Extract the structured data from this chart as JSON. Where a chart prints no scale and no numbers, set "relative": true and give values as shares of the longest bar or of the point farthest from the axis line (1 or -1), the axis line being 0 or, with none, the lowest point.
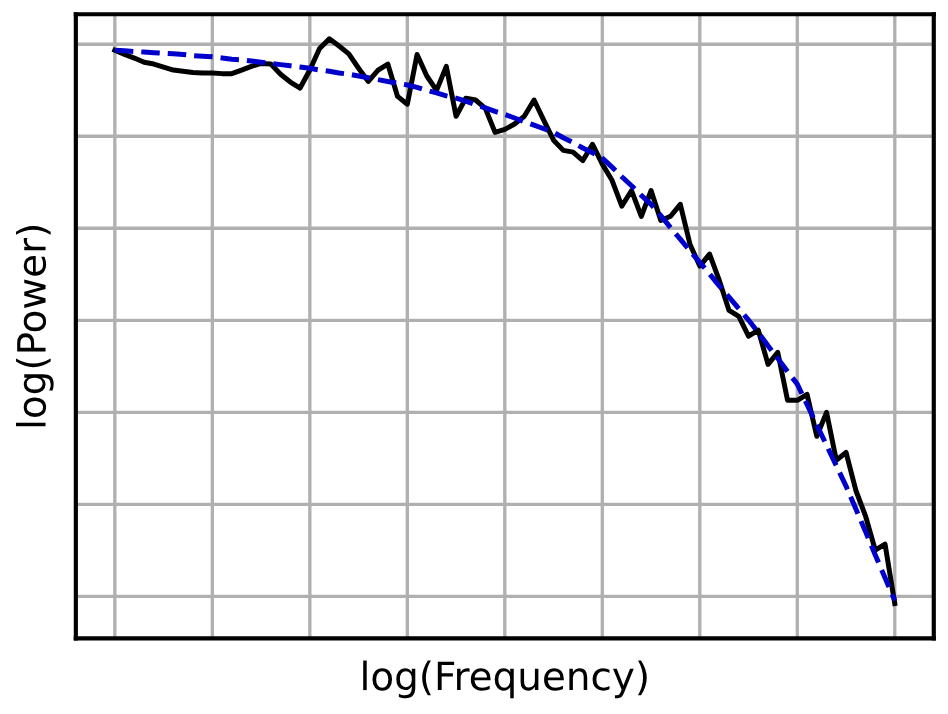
{
  "chart_data": {
    "type": "line",
    "relative": true,
    "xlabel": "log(Frequency)",
    "ylabel": "log(Power)",
    "grid": true,
    "categories": [
      null,
      null,
      null,
      null,
      null,
      null,
      null,
      null,
      null,
      null,
      null,
      null,
      null,
      null,
      null,
      null,
      null,
      null,
      null,
      null,
      null,
      null,
      null,
      null,
      null,
      null,
      null,
      null,
      null,
      null,
      null,
      null,
      null,
      null,
      null,
      null,
      null,
      null,
      null,
      null,
      null,
      null,
      null,
      null,
      null,
      null,
      null,
      null,
      null,
      null,
      null,
      null,
      null,
      null,
      null,
      null,
      null,
      null,
      null,
      null,
      null,
      null,
      null,
      null,
      null,
      null,
      null,
      null,
      null,
      null,
      null,
      null,
      null,
      null,
      null,
      null,
      null,
      null,
      null,
      null,
      null
    ],
    "series": [
      {
        "color": "#000000",
        "line_style": "solid",
        "values": [
          0.981,
          0.974,
          0.968,
          0.961,
          0.958,
          0.953,
          0.948,
          0.946,
          0.944,
          0.943,
          0.943,
          0.942,
          0.942,
          0.948,
          0.954,
          0.959,
          0.958,
          0.941,
          0.928,
          0.918,
          0.948,
          0.984,
          1.0,
          0.988,
          0.975,
          0.951,
          0.929,
          0.948,
          0.958,
          0.904,
          0.891,
          0.974,
          0.938,
          0.914,
          0.954,
          0.871,
          0.901,
          0.898,
          0.884,
          0.844,
          0.849,
          0.858,
          0.871,
          0.898,
          0.864,
          0.831,
          0.814,
          0.811,
          0.797,
          0.824,
          0.791,
          0.764,
          0.721,
          0.747,
          0.704,
          0.747,
          0.697,
          0.704,
          0.724,
          0.657,
          0.621,
          0.641,
          0.597,
          0.547,
          0.537,
          0.504,
          0.514,
          0.457,
          0.477,
          0.397,
          0.397,
          0.407,
          0.337,
          0.377,
          0.297,
          0.31,
          0.247,
          0.204,
          0.147,
          0.157,
          0.058
        ]
      },
      {
        "color": "#0000cc",
        "line_style": "dashed",
        "values": [
          0.981,
          0.98,
          0.979,
          0.978,
          0.977,
          0.976,
          0.975,
          0.974,
          0.972,
          0.971,
          0.97,
          0.968,
          0.966,
          0.965,
          0.963,
          0.961,
          0.959,
          0.957,
          0.955,
          0.953,
          0.951,
          0.948,
          0.946,
          0.943,
          0.941,
          0.938,
          0.935,
          0.932,
          0.929,
          0.926,
          0.923,
          0.919,
          0.914,
          0.91,
          0.905,
          0.901,
          0.896,
          0.89,
          0.885,
          0.879,
          0.874,
          0.868,
          0.862,
          0.856,
          0.85,
          0.844,
          0.835,
          0.827,
          0.818,
          0.81,
          0.801,
          0.786,
          0.77,
          0.755,
          0.739,
          0.724,
          0.705,
          0.685,
          0.666,
          0.646,
          0.627,
          0.608,
          0.588,
          0.569,
          0.55,
          0.531,
          0.51,
          0.488,
          0.467,
          0.445,
          0.424,
          0.39,
          0.356,
          0.322,
          0.288,
          0.254,
          0.216,
          0.178,
          0.139,
          0.101,
          0.063
        ]
      }
    ]
  }
}
